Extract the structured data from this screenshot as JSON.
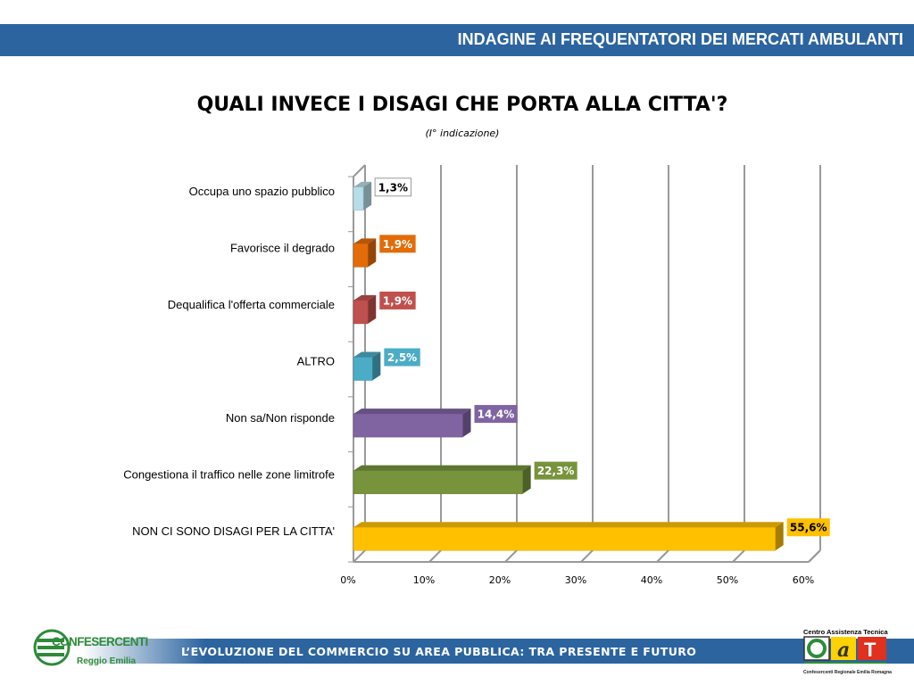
{
  "header": {
    "title": "INDAGINE AI FREQUENTATORI DEI MERCATI AMBULANTI"
  },
  "chart_data": {
    "type": "bar",
    "orientation": "horizontal",
    "title": "QUALI INVECE I DISAGI CHE PORTA ALLA CITTA'?",
    "subtitle": "(I° indicazione)",
    "categories": [
      "Occupa uno spazio pubblico",
      "Favorisce il degrado",
      "Dequalifica l'offerta commerciale",
      "ALTRO",
      "Non sa/Non risponde",
      "Congestiona il traffico nelle zone limitrofe",
      "NON CI SONO DISAGI PER LA CITTA'"
    ],
    "values": [
      1.3,
      1.9,
      1.9,
      2.5,
      14.4,
      22.3,
      55.6
    ],
    "value_labels": [
      "1,3%",
      "1,9%",
      "1,9%",
      "2,5%",
      "14,4%",
      "22,3%",
      "55,6%"
    ],
    "colors": [
      "#b7dde8",
      "#e36c09",
      "#c0504d",
      "#4bacc6",
      "#8064a2",
      "#77933c",
      "#ffc000"
    ],
    "label_text_colors": [
      "#000000",
      "#ffffff",
      "#ffffff",
      "#ffffff",
      "#ffffff",
      "#ffffff",
      "#000000"
    ],
    "label_box_colors": [
      "#ffffff",
      "#e36c09",
      "#c0504d",
      "#4bacc6",
      "#8064a2",
      "#77933c",
      "#ffc000"
    ],
    "xlim": [
      0,
      60
    ],
    "x_ticks": [
      0,
      10,
      20,
      30,
      40,
      50,
      60
    ],
    "x_tick_labels": [
      "0%",
      "10%",
      "20%",
      "30%",
      "40%",
      "50%",
      "60%"
    ],
    "grid": true,
    "legend": "none"
  },
  "footer": {
    "text": "L’EVOLUZIONE DEL COMMERCIO SU AREA PUBBLICA: TRA PRESENTE E FUTURO",
    "logo_left_name": "CONFESERCENTI",
    "logo_left_city": "Reggio Emilia",
    "logo_right_top": "Centro Assistenza Tecnica",
    "logo_right_bottom": "Confesercenti Regionale Emilia Romagna"
  }
}
